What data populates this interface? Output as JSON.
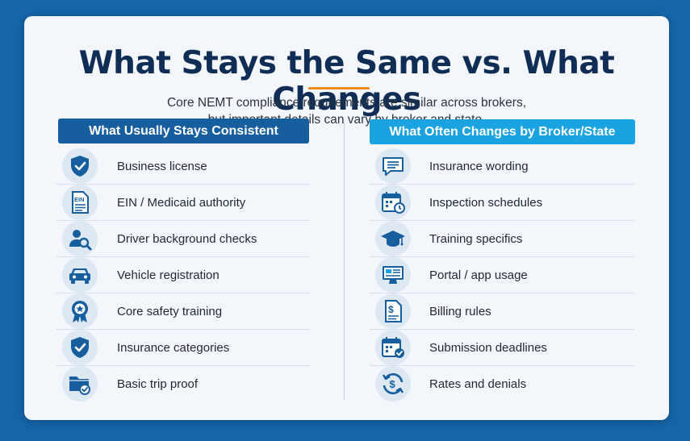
{
  "header": {
    "title": "What Stays the Same vs. What Changes",
    "subtitle_line1": "Core NEMT compliance requirements are similar across brokers,",
    "subtitle_line2": "but important details can vary by broker and state."
  },
  "colors": {
    "navy": "#0f2d55",
    "accent_orange": "#f08a1c",
    "left_header": "#175e9e",
    "right_header": "#1aa3e0",
    "background": "#1565a8"
  },
  "left_column": {
    "heading": "What Usually Stays Consistent",
    "items": [
      {
        "label": "Business license",
        "icon": "shield-check-icon"
      },
      {
        "label": "EIN / Medicaid authority",
        "icon": "ein-document-icon"
      },
      {
        "label": "Driver background checks",
        "icon": "person-search-icon"
      },
      {
        "label": "Vehicle registration",
        "icon": "car-icon"
      },
      {
        "label": "Core safety training",
        "icon": "award-ribbon-icon"
      },
      {
        "label": "Insurance categories",
        "icon": "shield-check-icon"
      },
      {
        "label": "Basic trip proof",
        "icon": "folder-check-icon"
      }
    ]
  },
  "right_column": {
    "heading": "What Often Changes by Broker/State",
    "items": [
      {
        "label": "Insurance wording",
        "icon": "chat-bubble-icon"
      },
      {
        "label": "Inspection schedules",
        "icon": "calendar-clock-icon"
      },
      {
        "label": "Training specifics",
        "icon": "graduation-cap-icon"
      },
      {
        "label": "Portal / app usage",
        "icon": "monitor-icon"
      },
      {
        "label": "Billing rules",
        "icon": "dollar-document-icon"
      },
      {
        "label": "Submission deadlines",
        "icon": "calendar-check-icon"
      },
      {
        "label": "Rates and denials",
        "icon": "dollar-cycle-icon"
      }
    ]
  }
}
